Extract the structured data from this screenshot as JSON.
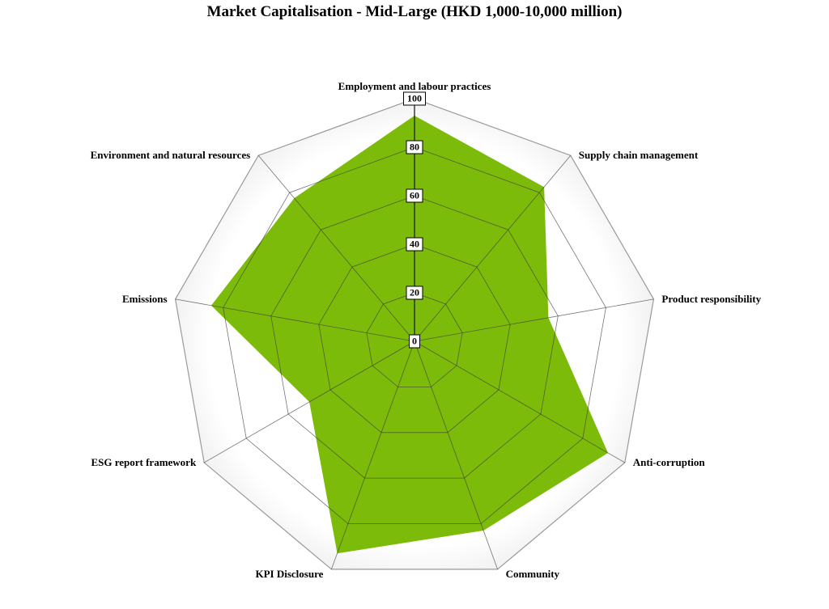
{
  "chart_data": {
    "type": "radar",
    "title": "Market Capitalisation - Mid-Large (HKD 1,000-10,000 million)",
    "categories": [
      "Employment and labour practices",
      "Supply chain management",
      "Product responsibility",
      "Anti-corruption",
      "Community",
      "KPI Disclosure",
      "ESG report framework",
      "Emissions",
      "Environment and natural resources"
    ],
    "series": [
      {
        "values": [
          93,
          83,
          56,
          92,
          83,
          93,
          50,
          85,
          77
        ]
      }
    ],
    "rlim": [
      0,
      100
    ],
    "ticks": [
      "0",
      "20",
      "40",
      "60",
      "80",
      "100"
    ],
    "grid": true,
    "legend": "none",
    "colors": {
      "series_fill": "#7dbb0a",
      "grid_line": "#3a3a3a",
      "outer_ring": "#9a9a9a",
      "band_fill": "#eeeeee"
    }
  }
}
